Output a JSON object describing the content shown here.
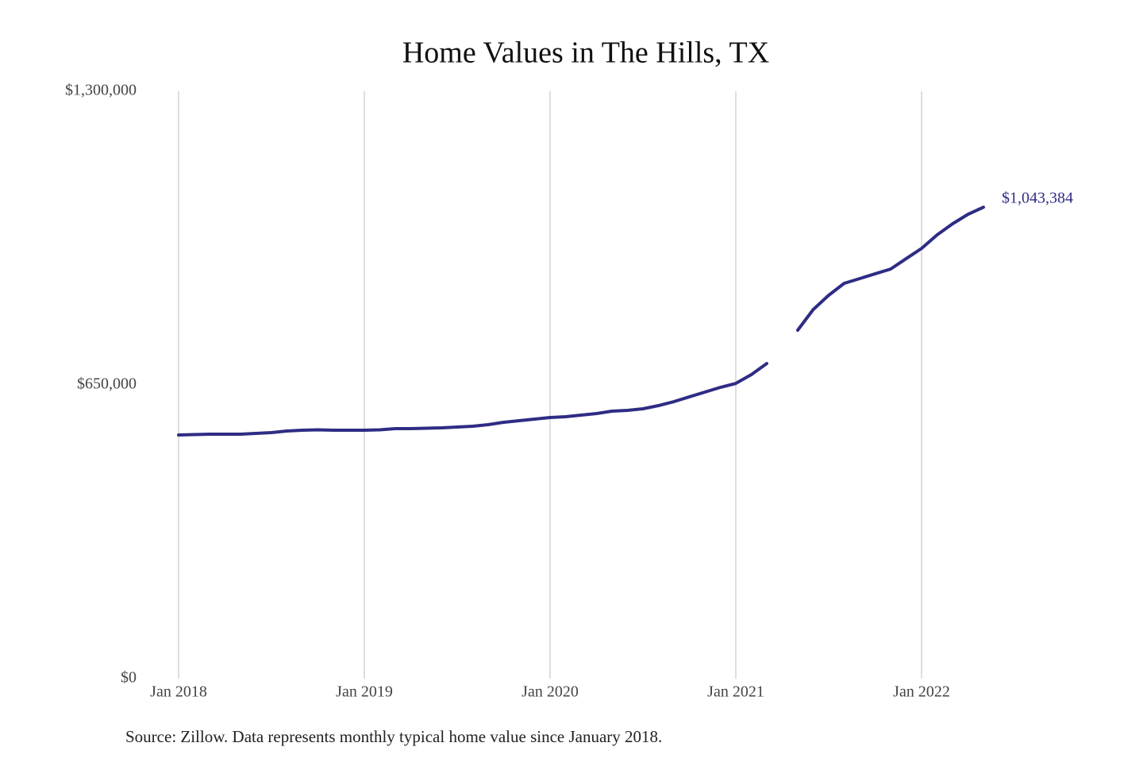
{
  "chart_data": {
    "type": "line",
    "title": "Home Values in The Hills, TX",
    "source": "Source: Zillow. Data represents monthly typical home value since January 2018.",
    "x": [
      "2018-01",
      "2018-02",
      "2018-03",
      "2018-04",
      "2018-05",
      "2018-06",
      "2018-07",
      "2018-08",
      "2018-09",
      "2018-10",
      "2018-11",
      "2018-12",
      "2019-01",
      "2019-02",
      "2019-03",
      "2019-04",
      "2019-05",
      "2019-06",
      "2019-07",
      "2019-08",
      "2019-09",
      "2019-10",
      "2019-11",
      "2019-12",
      "2020-01",
      "2020-02",
      "2020-03",
      "2020-04",
      "2020-05",
      "2020-06",
      "2020-07",
      "2020-08",
      "2020-09",
      "2020-10",
      "2020-11",
      "2020-12",
      "2021-01",
      "2021-02",
      "2021-03",
      "2021-04",
      "2021-05",
      "2021-06",
      "2021-07",
      "2021-08",
      "2021-09",
      "2021-10",
      "2021-11",
      "2021-12",
      "2022-01",
      "2022-02",
      "2022-03",
      "2022-04",
      "2022-05"
    ],
    "series": [
      {
        "name": "Typical home value",
        "color": "#2f2c84",
        "values": [
          539300,
          540200,
          541100,
          541100,
          541100,
          542800,
          544600,
          548100,
          549900,
          550800,
          549900,
          549900,
          549900,
          550800,
          553400,
          553400,
          554300,
          555200,
          556900,
          558700,
          562200,
          567400,
          571000,
          574500,
          578000,
          579700,
          583200,
          586800,
          592000,
          593800,
          597300,
          604300,
          613100,
          623700,
          634200,
          644700,
          653500,
          672800,
          697400,
          null,
          771200,
          816900,
          848500,
          874900,
          885400,
          896000,
          906500,
          929400,
          952200,
          982000,
          1006600,
          1027700,
          1043384
        ],
        "value_labels": [
          null,
          null,
          null,
          null,
          null,
          null,
          null,
          null,
          null,
          null,
          null,
          null,
          null,
          null,
          null,
          null,
          null,
          null,
          null,
          null,
          null,
          null,
          null,
          null,
          null,
          null,
          null,
          null,
          null,
          null,
          null,
          null,
          null,
          null,
          null,
          null,
          null,
          null,
          null,
          null,
          null,
          null,
          null,
          null,
          null,
          null,
          null,
          null,
          null,
          null,
          null,
          null,
          "$1,043,384"
        ]
      }
    ],
    "ylim": [
      0,
      1300000
    ],
    "yticks": [
      {
        "value": 0,
        "label": "$0"
      },
      {
        "value": 650000,
        "label": "$650,000"
      },
      {
        "value": 1300000,
        "label": "$1,300,000"
      }
    ],
    "xticks": [
      {
        "value": "2018-01",
        "label": "Jan 2018"
      },
      {
        "value": "2019-01",
        "label": "Jan 2019"
      },
      {
        "value": "2020-01",
        "label": "Jan 2020"
      },
      {
        "value": "2021-01",
        "label": "Jan 2021"
      },
      {
        "value": "2022-01",
        "label": "Jan 2022"
      }
    ],
    "grid": "x"
  }
}
